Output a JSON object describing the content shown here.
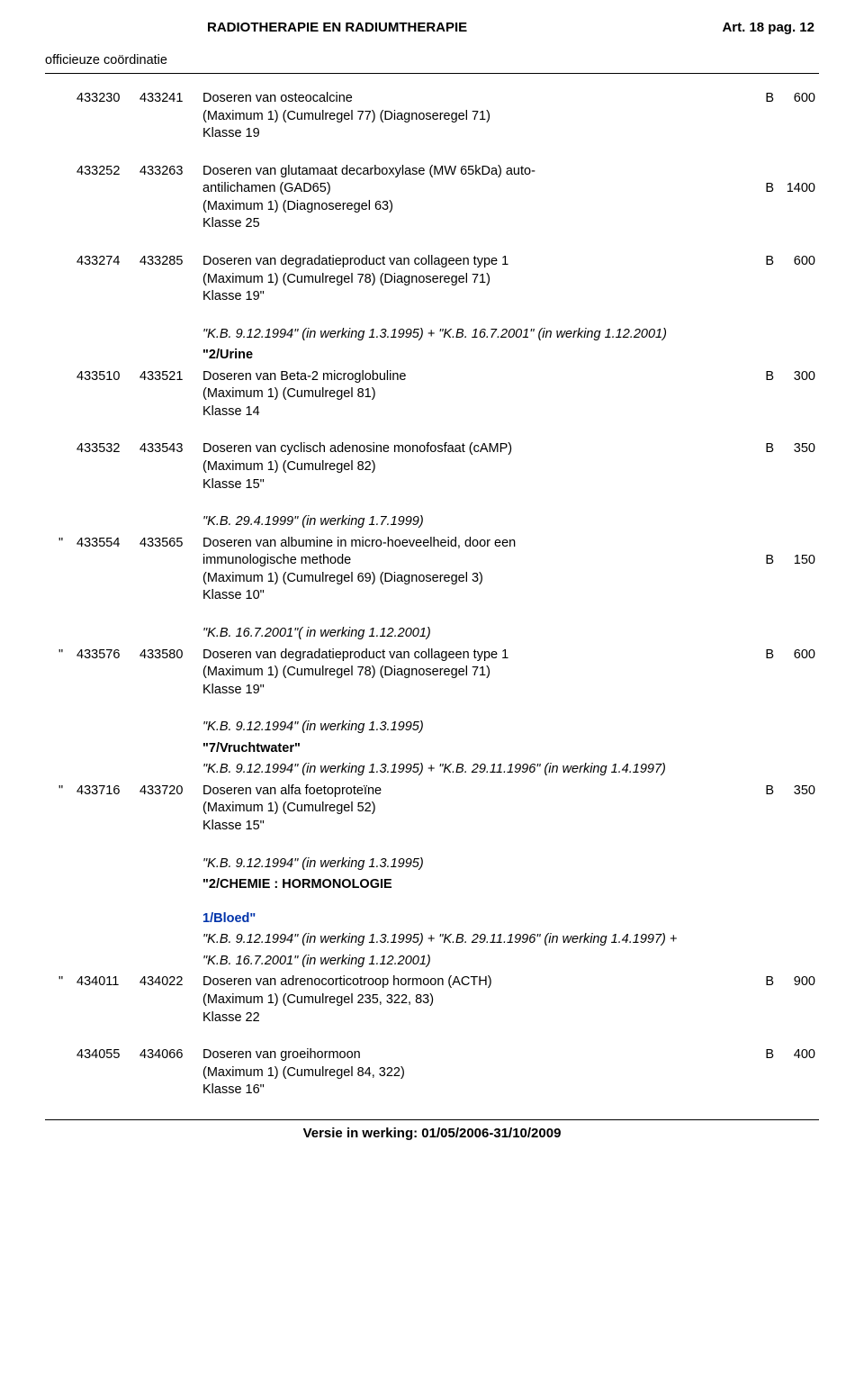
{
  "header": {
    "title_left": "RADIOTHERAPIE EN RADIUMTHERAPIE",
    "title_right": "Art. 18 pag. 12",
    "subtitle": "officieuze coördinatie"
  },
  "entries": [
    {
      "qmark": "",
      "code1": "433230",
      "code2": "433241",
      "letter": "B",
      "value": "600",
      "lines": [
        {
          "text": "Doseren van osteocalcine"
        },
        {
          "text": "(Maximum 1) (Cumulregel 77) (Diagnoseregel 71)"
        },
        {
          "text": "Klasse 19"
        }
      ]
    },
    {
      "qmark": "",
      "code1": "433252",
      "code2": "433263",
      "letter": "B",
      "value": "1400",
      "value_line_index": 1,
      "lines": [
        {
          "text": "Doseren van glutamaat decarboxylase (MW 65kDa) auto-"
        },
        {
          "text": "antilichamen (GAD65)"
        },
        {
          "text": "(Maximum 1) (Diagnoseregel 63)"
        },
        {
          "text": "Klasse 25"
        }
      ]
    },
    {
      "qmark": "",
      "code1": "433274",
      "code2": "433285",
      "letter": "B",
      "value": "600",
      "lines": [
        {
          "text": "Doseren van degradatieproduct van collageen type 1"
        },
        {
          "text": "(Maximum 1) (Cumulregel 78) (Diagnoseregel 71)"
        },
        {
          "text": "Klasse 19\""
        }
      ]
    },
    {
      "qmark": "",
      "code1": "433510",
      "code2": "433521",
      "letter": "B",
      "value": "300",
      "pre_notes": [
        {
          "text": "\"K.B. 9.12.1994\" (in werking 1.3.1995) + \"K.B. 16.7.2001\" (in werking 1.12.2001)",
          "style": "italic"
        },
        {
          "text": "\"2/Urine",
          "style": "bold"
        }
      ],
      "lines": [
        {
          "text": "Doseren van Beta-2 microglobuline"
        },
        {
          "text": "(Maximum 1) (Cumulregel 81)"
        },
        {
          "text": "Klasse 14"
        }
      ]
    },
    {
      "qmark": "",
      "code1": "433532",
      "code2": "433543",
      "letter": "B",
      "value": "350",
      "lines": [
        {
          "text": "Doseren van cyclisch adenosine monofosfaat (cAMP)"
        },
        {
          "text": "(Maximum 1) (Cumulregel 82)"
        },
        {
          "text": "Klasse 15\""
        }
      ]
    },
    {
      "qmark": "\"",
      "code1": "433554",
      "code2": "433565",
      "letter": "B",
      "value": "150",
      "value_line_index": 1,
      "pre_notes": [
        {
          "text": "\"K.B. 29.4.1999\" (in werking 1.7.1999)",
          "style": "italic"
        }
      ],
      "lines": [
        {
          "text": "Doseren van albumine in micro-hoeveelheid, door een"
        },
        {
          "text": "immunologische methode"
        },
        {
          "text": "(Maximum 1) (Cumulregel 69) (Diagnoseregel 3)"
        },
        {
          "text": "Klasse 10\""
        }
      ]
    },
    {
      "qmark": "\"",
      "code1": "433576",
      "code2": "433580",
      "letter": "B",
      "value": "600",
      "pre_notes": [
        {
          "text": "\"K.B. 16.7.2001\"( in werking 1.12.2001)",
          "style": "italic"
        }
      ],
      "lines": [
        {
          "text": "Doseren van degradatieproduct van collageen type 1"
        },
        {
          "text": "(Maximum 1) (Cumulregel 78) (Diagnoseregel 71)"
        },
        {
          "text": "Klasse 19\""
        }
      ]
    },
    {
      "qmark": "\"",
      "code1": "433716",
      "code2": "433720",
      "letter": "B",
      "value": "350",
      "pre_notes": [
        {
          "text": "\"K.B. 9.12.1994\" (in werking 1.3.1995)",
          "style": "italic"
        },
        {
          "text": "\"7/Vruchtwater\"",
          "style": "bold"
        },
        {
          "text": "\"K.B. 9.12.1994\" (in werking 1.3.1995) + \"K.B. 29.11.1996\" (in werking 1.4.1997)",
          "style": "italic"
        }
      ],
      "lines": [
        {
          "text": "Doseren van alfa foetoproteïne"
        },
        {
          "text": "(Maximum 1) (Cumulregel 52)"
        },
        {
          "text": "Klasse 15\""
        }
      ]
    },
    {
      "qmark": "\"",
      "code1": "434011",
      "code2": "434022",
      "letter": "B",
      "value": "900",
      "pre_notes": [
        {
          "text": "\"K.B. 9.12.1994\" (in werking 1.3.1995)",
          "style": "italic"
        },
        {
          "text": "\"2/CHEMIE : HORMONOLOGIE",
          "style": "bold"
        },
        {
          "blank": true
        },
        {
          "text": "1/Bloed\"",
          "style": "blue"
        },
        {
          "text": "\"K.B. 9.12.1994\" (in werking 1.3.1995) + \"K.B. 29.11.1996\" (in werking 1.4.1997) +",
          "style": "italic"
        },
        {
          "text": "\"K.B. 16.7.2001\" (in werking 1.12.2001)",
          "style": "italic"
        }
      ],
      "lines": [
        {
          "text": "Doseren van adrenocorticotroop hormoon (ACTH)"
        },
        {
          "text": "(Maximum 1) (Cumulregel 235, 322, 83)"
        },
        {
          "text": "Klasse 22"
        }
      ]
    },
    {
      "qmark": "",
      "code1": "434055",
      "code2": "434066",
      "letter": "B",
      "value": "400",
      "lines": [
        {
          "text": "Doseren van groeihormoon"
        },
        {
          "text": "(Maximum 1) (Cumulregel 84, 322)"
        },
        {
          "text": "Klasse 16\""
        }
      ]
    }
  ],
  "footer": "Versie in werking: 01/05/2006-31/10/2009"
}
